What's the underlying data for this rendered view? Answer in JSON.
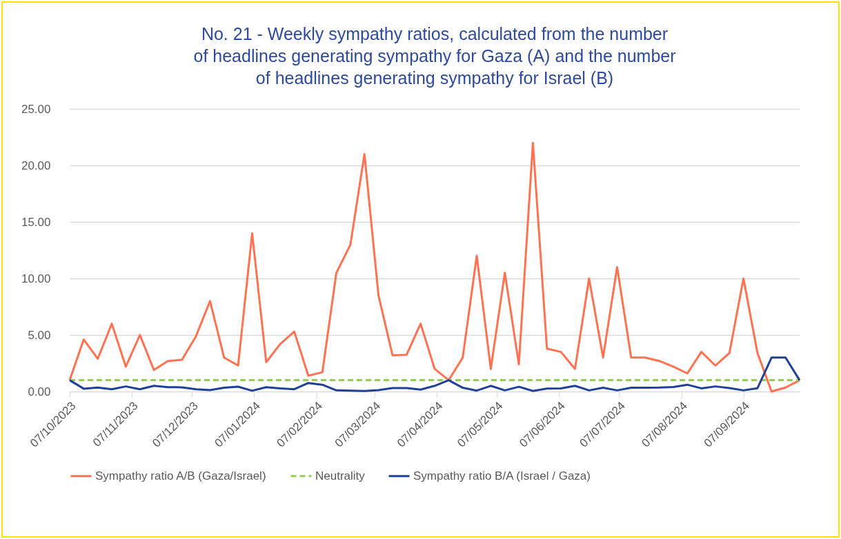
{
  "chart_data": {
    "type": "line",
    "title": "No. 21 - Weekly sympathy ratios, calculated from the number of headlines generating sympathy for Gaza (A) and the number of headlines generating sympathy for Israel (B)",
    "x": [
      "2023-10-07",
      "2023-10-14",
      "2023-10-21",
      "2023-10-28",
      "2023-11-04",
      "2023-11-11",
      "2023-11-18",
      "2023-11-25",
      "2023-12-02",
      "2023-12-09",
      "2023-12-16",
      "2023-12-23",
      "2023-12-30",
      "2024-01-06",
      "2024-01-13",
      "2024-01-20",
      "2024-01-27",
      "2024-02-03",
      "2024-02-10",
      "2024-02-17",
      "2024-02-24",
      "2024-03-02",
      "2024-03-09",
      "2024-03-16",
      "2024-03-23",
      "2024-03-30",
      "2024-04-06",
      "2024-04-13",
      "2024-04-20",
      "2024-04-27",
      "2024-05-04",
      "2024-05-11",
      "2024-05-18",
      "2024-05-25",
      "2024-06-01",
      "2024-06-08",
      "2024-06-15",
      "2024-06-22",
      "2024-06-29",
      "2024-07-06",
      "2024-07-13",
      "2024-07-20",
      "2024-07-27",
      "2024-08-03",
      "2024-08-10",
      "2024-08-17",
      "2024-08-24",
      "2024-08-31",
      "2024-09-07",
      "2024-09-14",
      "2024-09-21",
      "2024-09-28",
      "2024-10-05"
    ],
    "series": [
      {
        "name": "Sympathy ratio A/B (Gaza/Israel)",
        "color": "#ff7150",
        "line_style": "solid",
        "values": [
          1.0,
          4.6,
          2.9,
          6.0,
          2.2,
          5.0,
          1.9,
          2.7,
          2.8,
          4.9,
          8.0,
          3.0,
          2.3,
          14.0,
          2.6,
          4.2,
          5.3,
          1.4,
          1.7,
          10.5,
          13.0,
          21.0,
          8.5,
          3.2,
          3.25,
          6.0,
          2.0,
          1.0,
          3.0,
          12.0,
          2.0,
          10.5,
          2.4,
          22.0,
          3.8,
          3.5,
          2.0,
          10.0,
          3.0,
          11.0,
          3.0,
          3.0,
          2.7,
          2.2,
          1.6,
          3.5,
          2.3,
          3.4,
          10.0,
          3.4,
          0.0,
          0.35,
          1.0
        ]
      },
      {
        "name": "Neutrality",
        "color": "#92d050",
        "line_style": "dashed",
        "values": [
          1,
          1,
          1,
          1,
          1,
          1,
          1,
          1,
          1,
          1,
          1,
          1,
          1,
          1,
          1,
          1,
          1,
          1,
          1,
          1,
          1,
          1,
          1,
          1,
          1,
          1,
          1,
          1,
          1,
          1,
          1,
          1,
          1,
          1,
          1,
          1,
          1,
          1,
          1,
          1,
          1,
          1,
          1,
          1,
          1,
          1,
          1,
          1,
          1,
          1,
          1,
          1,
          1
        ]
      },
      {
        "name": "Sympathy ratio B/A (Israel / Gaza)",
        "color": "#203f99",
        "line_style": "solid",
        "values": [
          1.0,
          0.25,
          0.35,
          0.2,
          0.45,
          0.2,
          0.5,
          0.38,
          0.37,
          0.2,
          0.12,
          0.33,
          0.43,
          0.07,
          0.38,
          0.27,
          0.2,
          0.75,
          0.6,
          0.1,
          0.08,
          0.05,
          0.12,
          0.31,
          0.31,
          0.17,
          0.5,
          1.0,
          0.33,
          0.08,
          0.5,
          0.1,
          0.42,
          0.05,
          0.26,
          0.28,
          0.5,
          0.1,
          0.33,
          0.1,
          0.33,
          0.33,
          0.35,
          0.4,
          0.6,
          0.28,
          0.45,
          0.3,
          0.1,
          0.29,
          3.0,
          3.0,
          1.0
        ]
      }
    ],
    "xlim": [
      "2023-10-07",
      "2024-10-05"
    ],
    "xticks": [
      {
        "value": "2023-10-07",
        "label": "07/10/2023"
      },
      {
        "value": "2023-11-07",
        "label": "07/11/2023"
      },
      {
        "value": "2023-12-07",
        "label": "07/12/2023"
      },
      {
        "value": "2024-01-07",
        "label": "07/01/2024"
      },
      {
        "value": "2024-02-07",
        "label": "07/02/2024"
      },
      {
        "value": "2024-03-07",
        "label": "07/03/2024"
      },
      {
        "value": "2024-04-07",
        "label": "07/04/2024"
      },
      {
        "value": "2024-05-07",
        "label": "07/05/2024"
      },
      {
        "value": "2024-06-07",
        "label": "07/06/2024"
      },
      {
        "value": "2024-07-07",
        "label": "07/07/2024"
      },
      {
        "value": "2024-08-07",
        "label": "07/08/2024"
      },
      {
        "value": "2024-09-07",
        "label": "07/09/2024"
      }
    ],
    "ylim": [
      0,
      25
    ],
    "yticks": [
      {
        "value": 0,
        "label": "0.00"
      },
      {
        "value": 5,
        "label": "5.00"
      },
      {
        "value": 10,
        "label": "10.00"
      },
      {
        "value": 15,
        "label": "15.00"
      },
      {
        "value": 20,
        "label": "20.00"
      },
      {
        "value": 25,
        "label": "25.00"
      }
    ],
    "grid": "y",
    "legend": "bottom",
    "marker": "none"
  }
}
